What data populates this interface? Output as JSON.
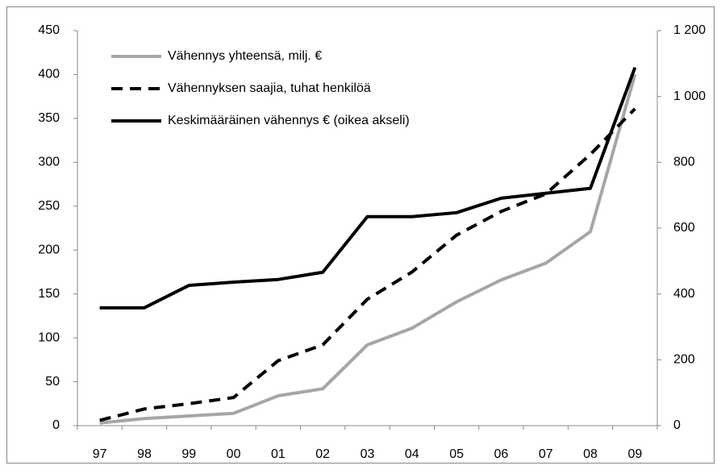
{
  "chart_data": {
    "type": "line",
    "categories": [
      "97",
      "98",
      "99",
      "00",
      "01",
      "02",
      "03",
      "04",
      "05",
      "06",
      "07",
      "08",
      "09"
    ],
    "series": [
      {
        "name": "Vähennys yhteensä, milj. €",
        "color": "#a6a6a6",
        "line_style": "solid",
        "axis": "y",
        "values": [
          3,
          8,
          11,
          14,
          34,
          42,
          92,
          111,
          141,
          166,
          185,
          221,
          400
        ]
      },
      {
        "name": "Vähennyksen saajia, tuhat henkilöä",
        "color": "#000000",
        "line_style": "dashed",
        "axis": "y",
        "values": [
          6,
          19,
          25,
          32,
          74,
          92,
          144,
          175,
          217,
          244,
          264,
          309,
          361
        ]
      },
      {
        "name": "Keskimääräinen vähennys € (oikea akseli)",
        "color": "#000000",
        "line_style": "solid",
        "axis": "y2",
        "values": [
          358,
          358,
          426,
          436,
          444,
          466,
          635,
          635,
          647,
          691,
          706,
          721,
          1088
        ]
      }
    ],
    "ylim": [
      0,
      450
    ],
    "yticks": [
      0,
      50,
      100,
      150,
      200,
      250,
      300,
      350,
      400,
      450
    ],
    "y2lim": [
      0,
      1200
    ],
    "y2ticks": [
      0,
      200,
      400,
      600,
      800,
      {
        "value": 1000,
        "label": "1 000"
      },
      {
        "value": 1200,
        "label": "1 200"
      }
    ],
    "legend": "upper left",
    "grid": false
  }
}
